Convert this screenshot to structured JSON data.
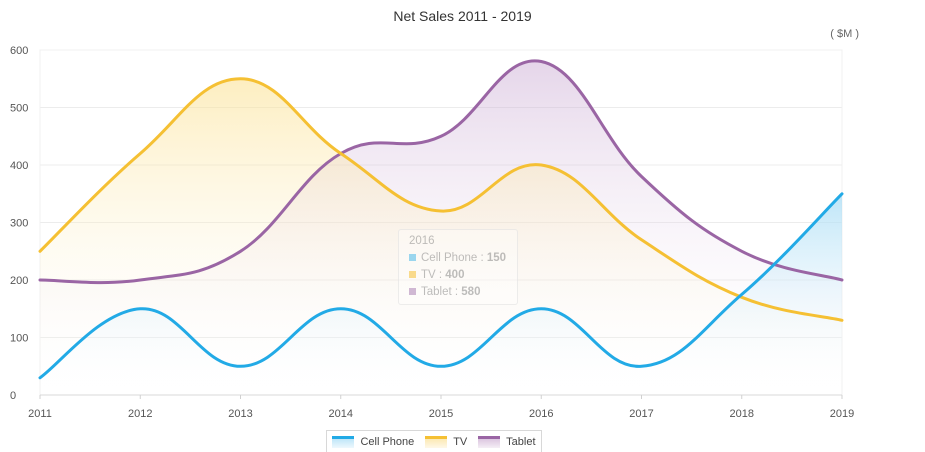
{
  "chart_data": {
    "type": "area",
    "title": "Net Sales 2011 - 2019",
    "unit": "( $M )",
    "categories": [
      "2011",
      "2012",
      "2013",
      "2014",
      "2015",
      "2016",
      "2017",
      "2018",
      "2019"
    ],
    "ylim": [
      0,
      600
    ],
    "yticks": [
      0,
      100,
      200,
      300,
      400,
      500,
      600
    ],
    "grid": true,
    "legend_position": "bottom",
    "series": [
      {
        "name": "Cell Phone",
        "color": "#22aae6",
        "values": [
          30,
          150,
          50,
          150,
          50,
          150,
          50,
          175,
          350
        ]
      },
      {
        "name": "TV",
        "color": "#f5c033",
        "values": [
          250,
          420,
          550,
          420,
          320,
          400,
          270,
          170,
          130
        ]
      },
      {
        "name": "Tablet",
        "color": "#9a65a4",
        "values": [
          200,
          200,
          250,
          420,
          450,
          580,
          380,
          250,
          200
        ]
      }
    ],
    "tooltip": {
      "title": "2016",
      "rows": [
        {
          "label": "Cell Phone : ",
          "value": "150",
          "color": "#22aae6"
        },
        {
          "label": "TV : ",
          "value": "400",
          "color": "#f5c033"
        },
        {
          "label": "Tablet : ",
          "value": "580",
          "color": "#9a65a4"
        }
      ]
    }
  }
}
